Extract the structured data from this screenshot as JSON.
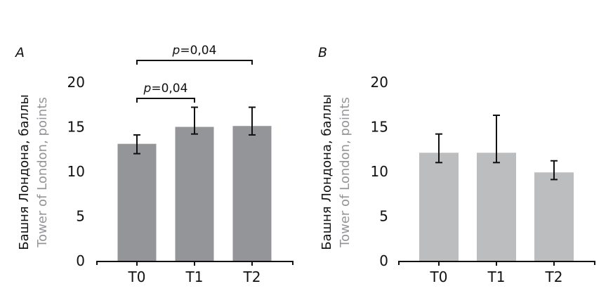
{
  "chart_data": [
    {
      "type": "bar",
      "panel_label": "A",
      "categories": [
        "T0",
        "T1",
        "T2"
      ],
      "values": [
        13.1,
        15.0,
        15.1
      ],
      "error_upper": [
        14.1,
        17.2,
        17.2
      ],
      "error_lower": [
        12.0,
        14.2,
        14.1
      ],
      "ylabel_ru": "Башня Лондона, баллы",
      "ylabel_en": "Tower of London, points",
      "ylim": [
        0,
        20
      ],
      "yticks": [
        "0",
        "5",
        "10",
        "15",
        "20"
      ],
      "bar_color": "#939598",
      "grid": false,
      "annotations": [
        {
          "from": "T0",
          "to": "T1",
          "p_symbol": "p",
          "p_value": "=0,04"
        },
        {
          "from": "T0",
          "to": "T2",
          "p_symbol": "p",
          "p_value": "=0,04"
        }
      ]
    },
    {
      "type": "bar",
      "panel_label": "B",
      "categories": [
        "T0",
        "T1",
        "T2"
      ],
      "values": [
        12.1,
        12.1,
        9.9
      ],
      "error_upper": [
        14.2,
        16.3,
        11.2
      ],
      "error_lower": [
        11.0,
        11.0,
        9.1
      ],
      "ylabel_ru": "Башня Лондона, баллы",
      "ylabel_en": "Tower of London, points",
      "ylim": [
        0,
        20
      ],
      "yticks": [
        "0",
        "5",
        "10",
        "15",
        "20"
      ],
      "bar_color": "#bcbdbf",
      "grid": false,
      "annotations": []
    }
  ]
}
